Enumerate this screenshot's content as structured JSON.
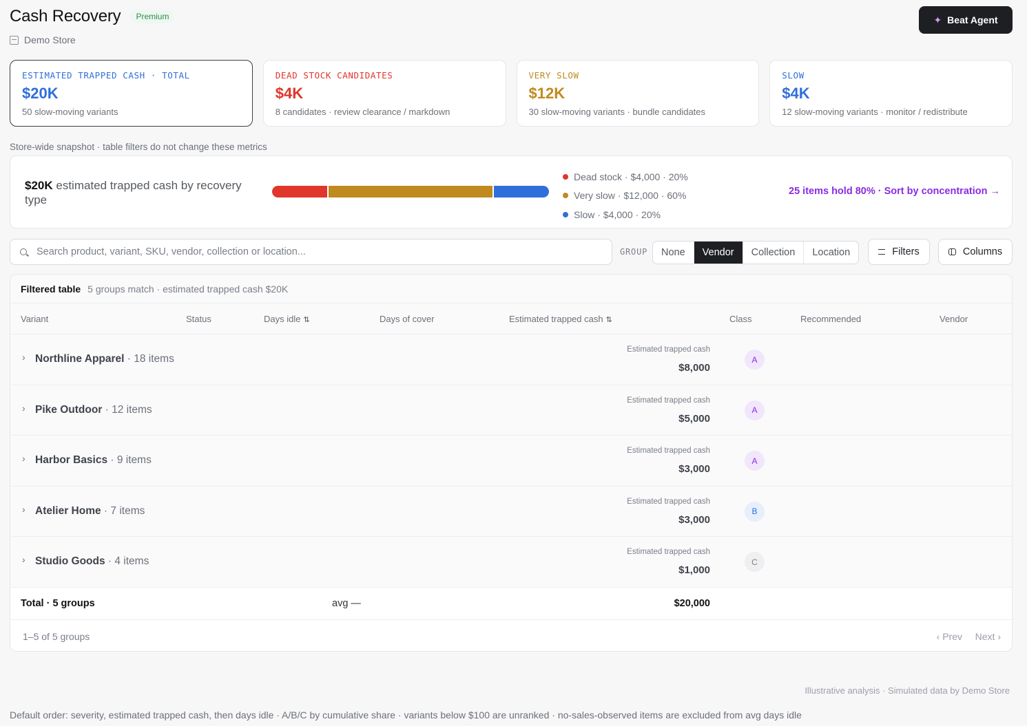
{
  "header": {
    "title": "Cash Recovery",
    "badge": "Premium",
    "store_name": "Demo Store",
    "store_icon": "store-icon",
    "agent_button": "Beat Agent",
    "agent_icon": "sparkle-icon"
  },
  "kpis": [
    {
      "label": "ESTIMATED TRAPPED CASH · TOTAL",
      "value": "$20K",
      "sub": "50 slow-moving variants",
      "color": "#2f6fdb",
      "active": true
    },
    {
      "label": "DEAD STOCK CANDIDATES",
      "value": "$4K",
      "sub": "8 candidates · review clearance / markdown",
      "color": "#e0362b",
      "active": false
    },
    {
      "label": "VERY SLOW",
      "value": "$12K",
      "sub": "30 slow-moving variants · bundle candidates",
      "color": "#c08a1f",
      "active": false
    },
    {
      "label": "SLOW",
      "value": "$4K",
      "sub": "12 slow-moving variants · monitor / redistribute",
      "color": "#2f6fdb",
      "active": false
    }
  ],
  "snapshot_note": "Store-wide snapshot · table filters do not change these metrics",
  "breakdown": {
    "amount": "$20K",
    "title_rest": " estimated trapped cash by recovery type",
    "segments": [
      {
        "name": "Dead stock",
        "label": "Dead stock · $4,000 · 20%",
        "share": 0.2,
        "color": "#e0362b"
      },
      {
        "name": "Very slow",
        "label": "Very slow · $12,000 · 60%",
        "share": 0.6,
        "color": "#c08a1f"
      },
      {
        "name": "Slow",
        "label": "Slow · $4,000 · 20%",
        "share": 0.2,
        "color": "#2f6fdb"
      }
    ],
    "link": "25 items hold 80% · Sort by concentration →"
  },
  "toolbar": {
    "search_placeholder": "Search product, variant, SKU, vendor, collection or location...",
    "group_label": "GROUP",
    "group_options": [
      "None",
      "Vendor",
      "Collection",
      "Location"
    ],
    "group_selected": "Vendor",
    "filters_label": "Filters",
    "columns_label": "Columns"
  },
  "table": {
    "title": "Filtered table",
    "summary": "5 groups match · estimated trapped cash $20K",
    "columns": [
      "Variant",
      "Status",
      "Days idle",
      "Days of cover",
      "Estimated trapped cash",
      "Class",
      "Recommended",
      "Vendor"
    ],
    "cash_label": "Estimated trapped cash",
    "groups": [
      {
        "name": "Northline Apparel",
        "count": " · 18 items",
        "cash": "$8,000",
        "class": "A"
      },
      {
        "name": "Pike Outdoor",
        "count": " · 12 items",
        "cash": "$5,000",
        "class": "A"
      },
      {
        "name": "Harbor Basics",
        "count": " · 9 items",
        "cash": "$3,000",
        "class": "A"
      },
      {
        "name": "Atelier Home",
        "count": " · 7 items",
        "cash": "$3,000",
        "class": "B"
      },
      {
        "name": "Studio Goods",
        "count": " · 4 items",
        "cash": "$1,000",
        "class": "C"
      }
    ],
    "total_label": "Total · 5 groups",
    "total_avg": "avg —",
    "total_value": "$20,000",
    "pager_info": "1–5 of 5 groups",
    "prev": "‹ Prev",
    "next": "Next ›"
  },
  "footer": {
    "right": "Illustrative analysis · Simulated data by Demo Store",
    "left": "Default order: severity, estimated trapped cash, then days idle · A/B/C by cumulative share · variants below $100 are unranked · no-sales-observed items are excluded from avg days idle"
  }
}
